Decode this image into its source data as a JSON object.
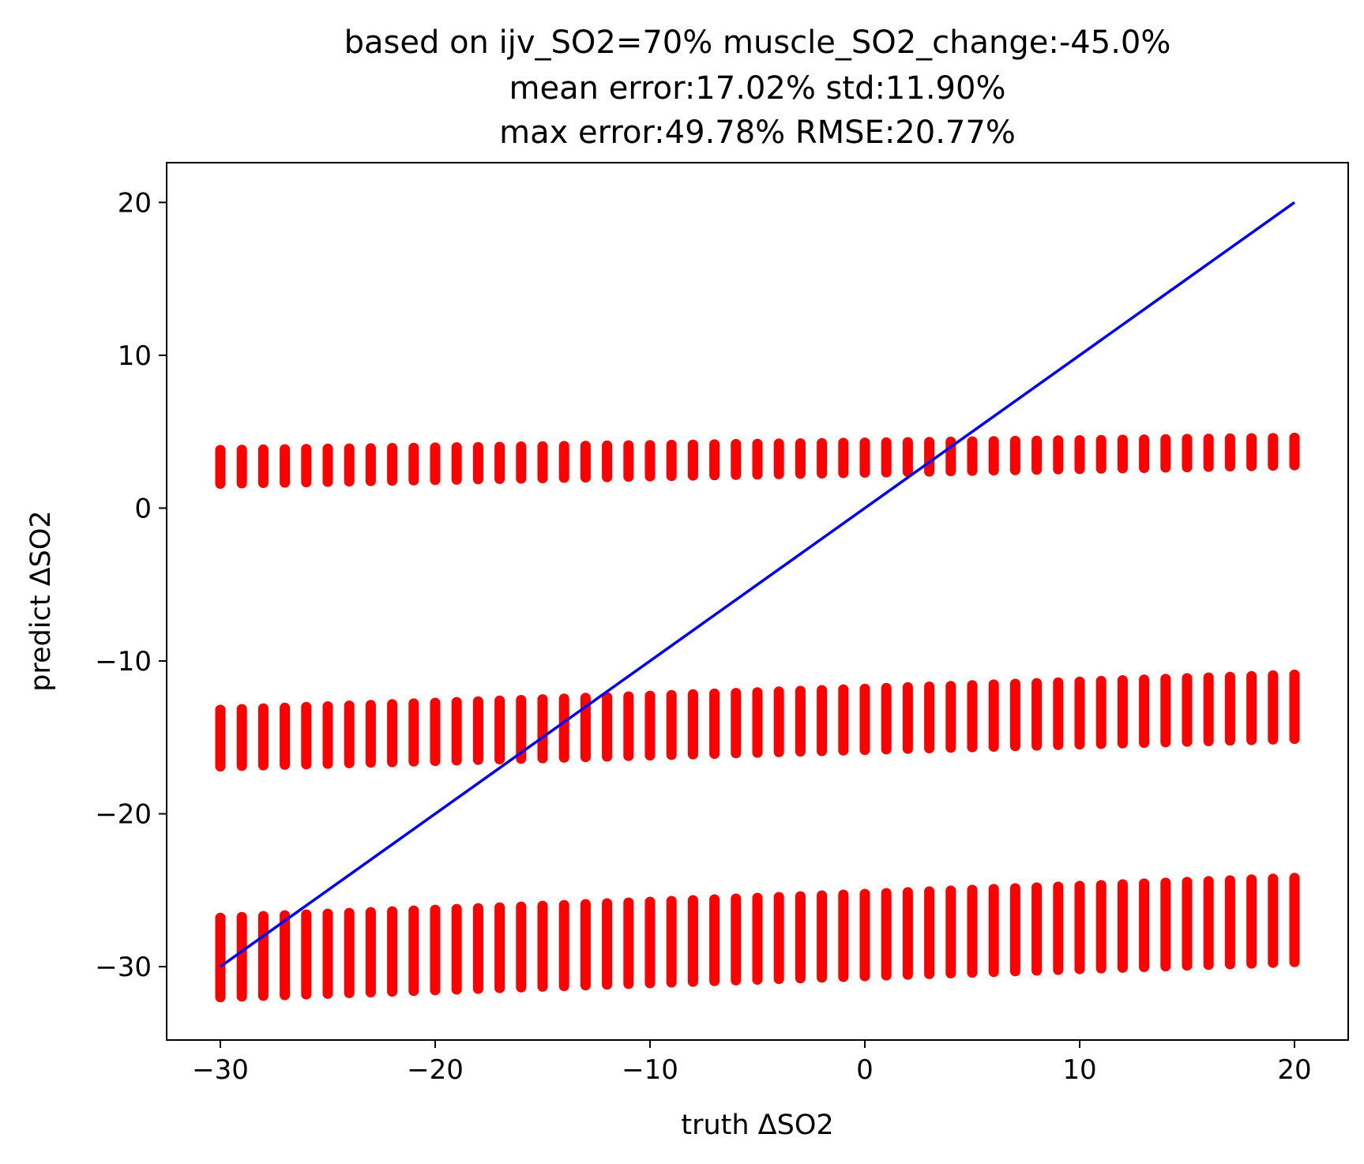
{
  "chart_data": {
    "type": "scatter",
    "title_lines": [
      "based on ijv_SO2=70% muscle_SO2_change:-45.0%",
      "mean error:17.02% std:11.90%",
      "max error:49.78% RMSE:20.77%"
    ],
    "xlabel": "truth ΔSO2",
    "ylabel": "predict ΔSO2",
    "xlim": [
      -32.5,
      22.5
    ],
    "ylim": [
      -34.8,
      22.6
    ],
    "xticks": [
      {
        "value": -30,
        "label": "−30"
      },
      {
        "value": -20,
        "label": "−20"
      },
      {
        "value": -10,
        "label": "−10"
      },
      {
        "value": 0,
        "label": "0"
      },
      {
        "value": 10,
        "label": "10"
      },
      {
        "value": 20,
        "label": "20"
      }
    ],
    "yticks": [
      {
        "value": -30,
        "label": "−30"
      },
      {
        "value": -20,
        "label": "−20"
      },
      {
        "value": -10,
        "label": "−10"
      },
      {
        "value": 0,
        "label": "0"
      },
      {
        "value": 10,
        "label": "10"
      },
      {
        "value": 20,
        "label": "20"
      }
    ],
    "grid": false,
    "scatter": {
      "color": "#ff0000",
      "x_start": -30,
      "x_end": 20,
      "x_step": 1,
      "bands": [
        {
          "lower_start": 1.6,
          "lower_end": 2.8,
          "upper_start": 3.8,
          "upper_end": 4.6
        },
        {
          "lower_start": -16.9,
          "lower_end": -15.1,
          "upper_start": -13.2,
          "upper_end": -10.9
        },
        {
          "lower_start": -32.0,
          "lower_end": -29.7,
          "upper_start": -26.8,
          "upper_end": -24.2
        }
      ]
    },
    "reference_line": {
      "color": "#0000ff",
      "x": [
        -30,
        20
      ],
      "y": [
        -30,
        20
      ]
    }
  }
}
